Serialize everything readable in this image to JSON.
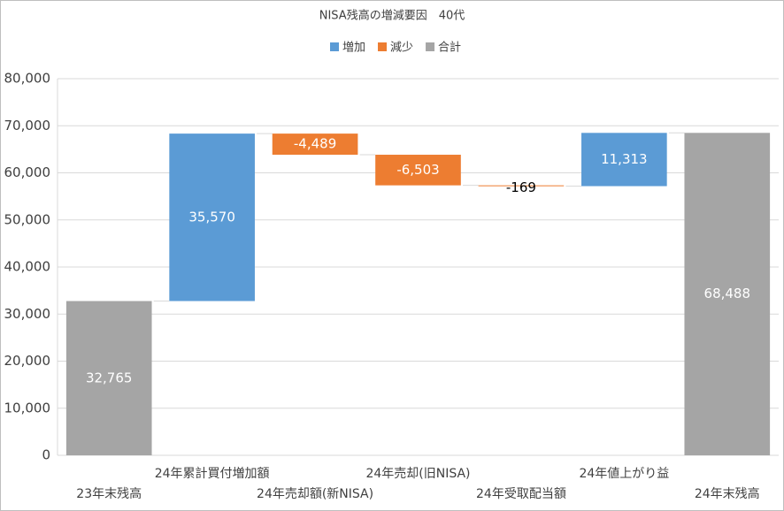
{
  "chart_data": {
    "type": "waterfall",
    "title": "NISA残高の増減要因　40代",
    "categories": [
      "23年末残高",
      "24年累計買付増加額",
      "24年売却額(新NISA)",
      "24年売却(旧NISA)",
      "24年受取配当額",
      "24年値上がり益",
      "24年末残高"
    ],
    "values": [
      32765,
      35570,
      -4489,
      -6503,
      -169,
      11313,
      68488
    ],
    "value_labels": [
      "32,765",
      "35,570",
      "-4,489",
      "-6,503",
      "-169",
      "11,313",
      "68,488"
    ],
    "series": [
      {
        "name": "増加",
        "color": "#5b9bd5"
      },
      {
        "name": "減少",
        "color": "#ed7d31"
      },
      {
        "name": "合計",
        "color": "#a5a5a5"
      }
    ],
    "bar_series": [
      2,
      0,
      1,
      1,
      1,
      0,
      2
    ],
    "ylim": [
      0,
      80000
    ],
    "yticks": [
      0,
      {
        "value": 10000,
        "label": "10,000"
      },
      {
        "value": 20000,
        "label": "20,000"
      },
      {
        "value": 30000,
        "label": "30,000"
      },
      {
        "value": 40000,
        "label": "40,000"
      },
      {
        "value": 50000,
        "label": "50,000"
      },
      {
        "value": 60000,
        "label": "60,000"
      },
      {
        "value": 70000,
        "label": "70,000"
      },
      {
        "value": 80000,
        "label": "80,000"
      }
    ],
    "grid": true,
    "legend": "top"
  }
}
